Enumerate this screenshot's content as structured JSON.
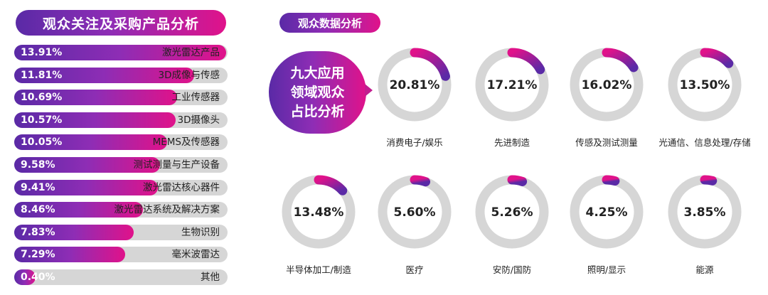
{
  "colors": {
    "gradient_start": "#5a2aa6",
    "gradient_end": "#e0128a",
    "track": "#d6d6d6"
  },
  "left_title": "观众关注及采购产品分析",
  "right_title": "观众数据分析",
  "callout": "九大应用\n领域观众\n占比分析",
  "chart_data": [
    {
      "type": "bar",
      "orientation": "horizontal",
      "categories": [
        "激光雷达产品",
        "3D成像与传感",
        "工业传感器",
        "3D摄像头",
        "MEMS及传感器",
        "测试测量与生产设备",
        "激光雷达核心器件",
        "激光雷达系统及解决方案",
        "生物识别",
        "毫米波雷达",
        "其他"
      ],
      "value_labels": [
        "13.91%",
        "11.81%",
        "10.69%",
        "10.57%",
        "10.05%",
        "9.58%",
        "9.41%",
        "8.46%",
        "7.83%",
        "7.29%",
        "0.40%"
      ],
      "values": [
        13.91,
        11.81,
        10.69,
        10.57,
        10.05,
        9.58,
        9.41,
        8.46,
        7.83,
        7.29,
        0.4
      ]
    },
    {
      "type": "pie",
      "style": "donut",
      "categories": [
        "消费电子/娱乐",
        "先进制造",
        "传感及测试测量",
        "光通信、信息处理/存储",
        "半导体加工/制造",
        "医疗",
        "安防/国防",
        "照明/显示",
        "能源"
      ],
      "value_labels": [
        "20.81%",
        "17.21%",
        "16.02%",
        "13.50%",
        "13.48%",
        "5.60%",
        "5.26%",
        "4.25%",
        "3.85%"
      ],
      "values": [
        20.81,
        17.21,
        16.02,
        13.5,
        13.48,
        5.6,
        5.26,
        4.25,
        3.85
      ]
    }
  ]
}
